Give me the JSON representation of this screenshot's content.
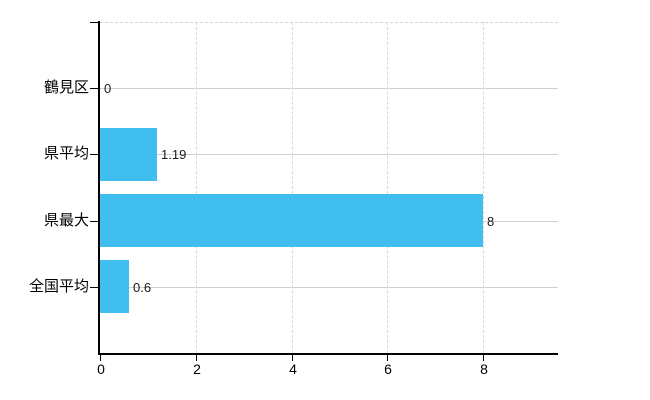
{
  "chart_data": {
    "type": "bar",
    "orientation": "horizontal",
    "categories": [
      "鶴見区",
      "県平均",
      "県最大",
      "全国平均"
    ],
    "values": [
      0,
      1.19,
      8,
      0.6
    ],
    "value_labels": [
      "0",
      "1.19",
      "8",
      "0.6"
    ],
    "x_ticks": [
      0,
      2,
      4,
      6,
      8
    ],
    "x_tick_labels": [
      "0",
      "2",
      "4",
      "6",
      "8"
    ],
    "xlim": [
      0,
      9.56
    ],
    "legend": "none",
    "grid": {
      "horizontal_solid": true,
      "vertical_dashed": true,
      "top_border_dashed": true
    },
    "colors": {
      "bar": "#41BEF0",
      "horizontal_grid": "#CDD3CA",
      "vertical_grid": "#D9D9D9",
      "axis": "#000000",
      "text": "#000000",
      "background": "#FFFFFF"
    }
  }
}
